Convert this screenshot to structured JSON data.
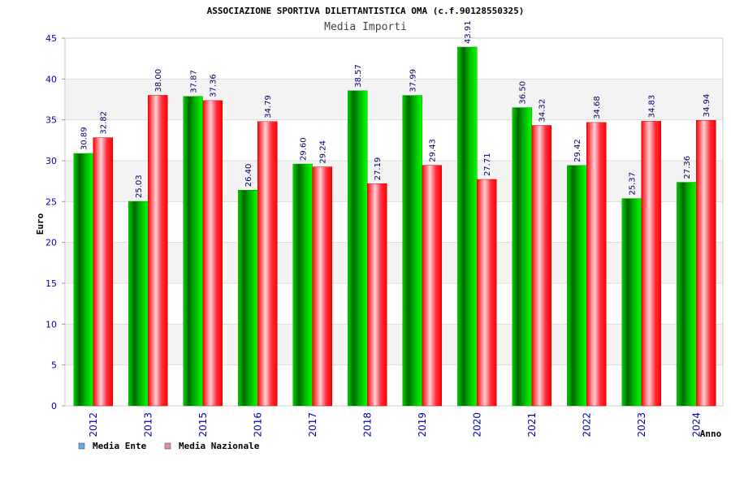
{
  "chart_data": {
    "type": "bar",
    "title": "ASSOCIAZIONE SPORTIVA DILETTANTISTICA OMA (c.f.90128550325)",
    "subtitle": "Media Importi",
    "xlabel": "Anno",
    "ylabel": "Euro",
    "ylim": [
      0,
      45
    ],
    "yticks": [
      0,
      5,
      10,
      15,
      20,
      25,
      30,
      35,
      40,
      45
    ],
    "categories": [
      "2012",
      "2013",
      "2015",
      "2016",
      "2017",
      "2018",
      "2019",
      "2020",
      "2021",
      "2022",
      "2023",
      "2024"
    ],
    "series": [
      {
        "name": "Media Ente",
        "labels": [
          "30.89",
          "25.03",
          "37.87",
          "26.40",
          "29.60",
          "38.57",
          "37.99",
          "43.91",
          "36.50",
          "29.42",
          "25.37",
          "27.36"
        ],
        "values": [
          30.89,
          25.03,
          37.87,
          26.4,
          29.6,
          38.57,
          37.99,
          43.91,
          36.5,
          29.42,
          25.37,
          27.36
        ]
      },
      {
        "name": "Media Nazionale",
        "labels": [
          "32.82",
          "38.00",
          "37.36",
          "34.79",
          "29.24",
          "27.19",
          "29.43",
          "27.71",
          "34.32",
          "34.68",
          "34.83",
          "34.94"
        ],
        "values": [
          32.82,
          38.0,
          37.36,
          34.79,
          29.24,
          27.19,
          29.43,
          27.71,
          34.32,
          34.68,
          34.83,
          34.94
        ]
      }
    ],
    "legend": [
      {
        "label": "Media Ente",
        "color": "#6aa7e8"
      },
      {
        "label": "Media Nazionale",
        "color": "#e88ab8"
      }
    ],
    "legend_position": "bottom-left",
    "grid": true
  }
}
